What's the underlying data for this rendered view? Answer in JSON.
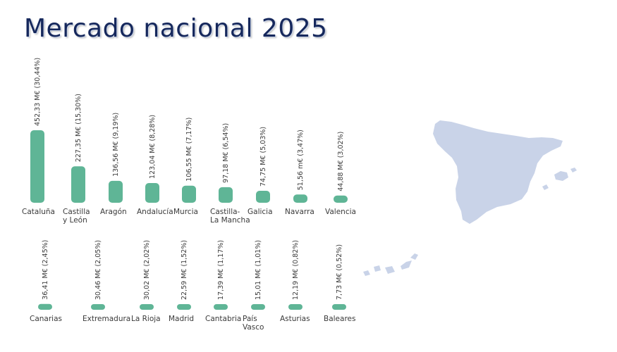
{
  "page": {
    "title": "Mercado nacional 2025",
    "map_icon": "spain-map-icon",
    "map_color": "#c9d3e8",
    "title_color": "#16285c"
  },
  "chart_data": {
    "type": "bar",
    "title": "Mercado nacional 2025",
    "bar_color": "#5fb596",
    "unit": "M€",
    "rows": [
      {
        "bars": [
          {
            "name": "Cataluña",
            "label_lines": [
              "Cataluña"
            ],
            "value": 452.33,
            "label": "452,33 M€ (30,44%)"
          },
          {
            "name": "Castilla y León",
            "label_lines": [
              "Castilla",
              "y León"
            ],
            "value": 227.35,
            "label": "227,35 M€ (15,30%)"
          },
          {
            "name": "Aragón",
            "label_lines": [
              "Aragón"
            ],
            "value": 136.56,
            "label": "136,56 M€ (9,19%)"
          },
          {
            "name": "Andalucía",
            "label_lines": [
              "Andalucía"
            ],
            "value": 123.04,
            "label": "123,04 M€ (8,28%)"
          },
          {
            "name": "Murcia",
            "label_lines": [
              "Murcia"
            ],
            "value": 106.55,
            "label": "106,55 M€  (7,17%)"
          },
          {
            "name": "Castilla-La Mancha",
            "label_lines": [
              "Castilla-",
              "La Mancha"
            ],
            "value": 97.18,
            "label": "97,18 M€ (6,54%)"
          },
          {
            "name": "Galicia",
            "label_lines": [
              "Galicia"
            ],
            "value": 74.75,
            "label": "74,75 M€ (5,03%)"
          },
          {
            "name": "Navarra",
            "label_lines": [
              "Navarra"
            ],
            "value": 51.56,
            "label": "51,56 m€ (3,47%)"
          },
          {
            "name": "Valencia",
            "label_lines": [
              "Valencia"
            ],
            "value": 44.88,
            "label": "44,88 M€ (3,02%)"
          }
        ]
      },
      {
        "bars": [
          {
            "name": "Canarias",
            "label_lines": [
              "Canarias"
            ],
            "value": 36.41,
            "label": "36,41 M€ (2,45%)"
          },
          {
            "name": "Extremadura",
            "label_lines": [
              "Extremadura"
            ],
            "value": 30.46,
            "label": "30,46 M€ (2,05%)"
          },
          {
            "name": "La Rioja",
            "label_lines": [
              "La Rioja"
            ],
            "value": 30.02,
            "label": "30,02 M€ (2,02%)"
          },
          {
            "name": "Madrid",
            "label_lines": [
              "Madrid"
            ],
            "value": 22.59,
            "label": "22,59 M€ (1,52%)"
          },
          {
            "name": "Cantabria",
            "label_lines": [
              "Cantabria"
            ],
            "value": 17.39,
            "label": "17,39 M€ (1,17%)"
          },
          {
            "name": "País Vasco",
            "label_lines": [
              "País",
              "Vasco"
            ],
            "value": 15.01,
            "label": "15,01 M€ (1,01%)"
          },
          {
            "name": "Asturias",
            "label_lines": [
              "Asturias"
            ],
            "value": 12.19,
            "label": "12,19 M€ (0,82%)"
          },
          {
            "name": "Baleares",
            "label_lines": [
              "Baleares"
            ],
            "value": 7.73,
            "label": "7,73 M€ (0,52%)"
          }
        ]
      }
    ]
  }
}
